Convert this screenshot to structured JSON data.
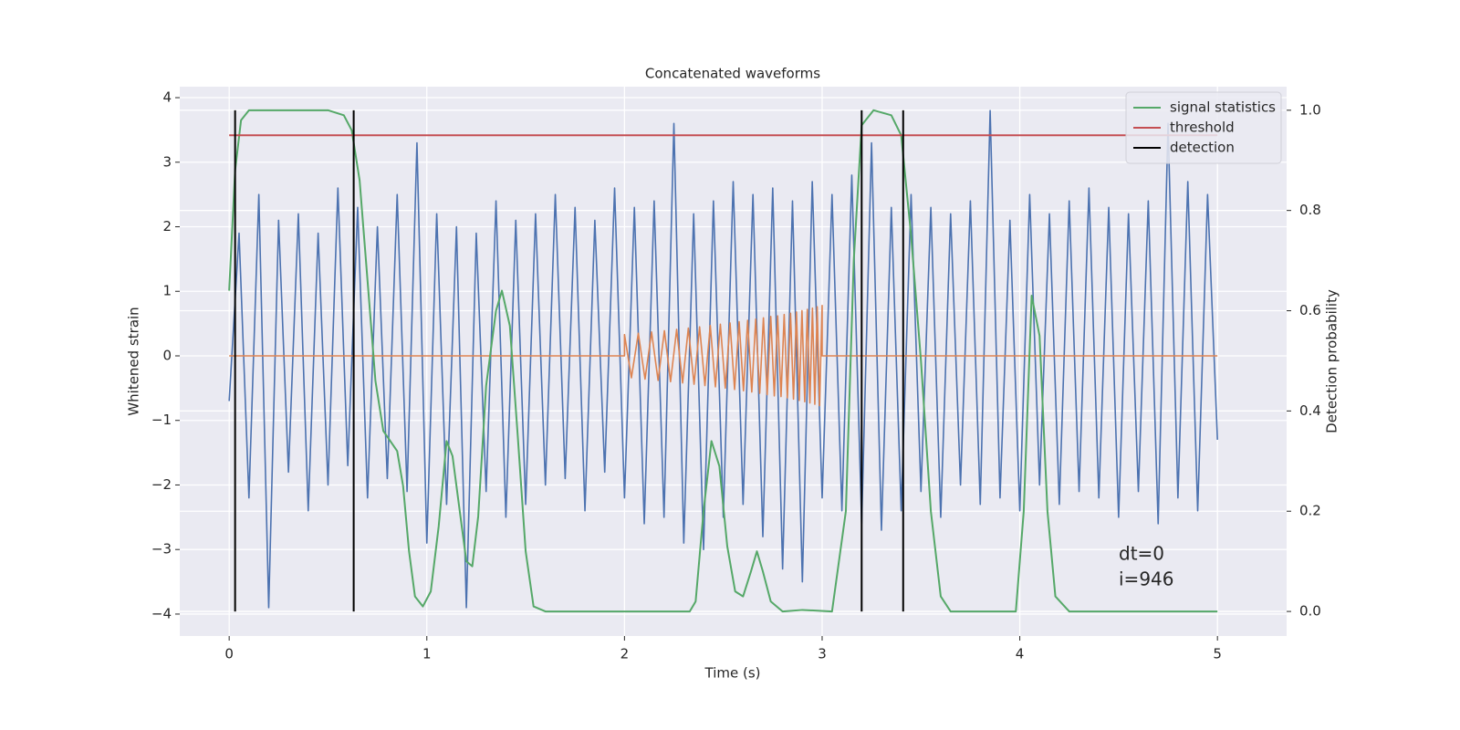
{
  "chart_data": {
    "type": "line",
    "title": "Concatenated waveforms",
    "xlabel": "Time (s)",
    "ylabel": "Whitened strain",
    "y2label": "Detection probability",
    "xlim": [
      -0.25,
      5.35
    ],
    "ylim": [
      -4.34,
      4.17
    ],
    "y2lim": [
      -0.049,
      1.047
    ],
    "xticks": [
      0,
      1,
      2,
      3,
      4,
      5
    ],
    "yticks": [
      -4,
      -3,
      -2,
      -1,
      0,
      1,
      2,
      3,
      4
    ],
    "y2ticks": [
      {
        "value": 0,
        "label": "0.0"
      },
      {
        "value": 0.2,
        "label": "0.2"
      },
      {
        "value": 0.4,
        "label": "0.4"
      },
      {
        "value": 0.6,
        "label": "0.6"
      },
      {
        "value": 0.8,
        "label": "0.8"
      },
      {
        "value": 1,
        "label": "1.0"
      }
    ],
    "grid": true,
    "legend_loc": "upper right",
    "annotations": [
      "dt=0",
      "i=946"
    ],
    "series": [
      {
        "color": "#4c72b0",
        "x": [
          0,
          0.05,
          0.1,
          0.15,
          0.2,
          0.25,
          0.3,
          0.35,
          0.4,
          0.45,
          0.5,
          0.55,
          0.6,
          0.65,
          0.7,
          0.75,
          0.8,
          0.85,
          0.9,
          0.95,
          1,
          1.05,
          1.1,
          1.15,
          1.2,
          1.25,
          1.3,
          1.35,
          1.4,
          1.45,
          1.5,
          1.55,
          1.6,
          1.65,
          1.7,
          1.75,
          1.8,
          1.85,
          1.9,
          1.95,
          2,
          2.05,
          2.1,
          2.15,
          2.2,
          2.25,
          2.3,
          2.35,
          2.4,
          2.45,
          2.5,
          2.55,
          2.6,
          2.65,
          2.7,
          2.75,
          2.8,
          2.85,
          2.9,
          2.95,
          3,
          3.05,
          3.1,
          3.15,
          3.2,
          3.25,
          3.3,
          3.35,
          3.4,
          3.45,
          3.5,
          3.55,
          3.6,
          3.65,
          3.7,
          3.75,
          3.8,
          3.85,
          3.9,
          3.95,
          4,
          4.05,
          4.1,
          4.15,
          4.2,
          4.25,
          4.3,
          4.35,
          4.4,
          4.45,
          4.5,
          4.55,
          4.6,
          4.65,
          4.7,
          4.75,
          4.8,
          4.85,
          4.9,
          4.95,
          5
        ],
        "values": [
          -0.7,
          1.9,
          -2.2,
          2.5,
          -3.9,
          2.1,
          -1.8,
          2.2,
          -2.4,
          1.9,
          -2.0,
          2.6,
          -1.7,
          2.3,
          -2.2,
          2.0,
          -1.9,
          2.5,
          -2.1,
          3.3,
          -2.9,
          2.2,
          -2.3,
          2.0,
          -3.9,
          1.9,
          -2.1,
          2.4,
          -2.5,
          2.1,
          -2.3,
          2.2,
          -2.0,
          2.5,
          -1.9,
          2.3,
          -2.4,
          2.1,
          -1.8,
          2.6,
          -2.2,
          2.3,
          -2.6,
          2.4,
          -2.5,
          3.6,
          -2.9,
          2.2,
          -3.0,
          2.4,
          -2.5,
          2.7,
          -2.3,
          2.5,
          -2.8,
          2.6,
          -3.3,
          2.4,
          -3.5,
          2.7,
          -2.2,
          2.5,
          -2.4,
          2.8,
          -2.6,
          3.3,
          -2.7,
          2.3,
          -2.4,
          2.5,
          -2.1,
          2.3,
          -2.5,
          2.2,
          -2.0,
          2.4,
          -2.3,
          3.8,
          -2.2,
          2.1,
          -2.4,
          2.5,
          -2.0,
          2.2,
          -2.3,
          2.4,
          -2.1,
          2.6,
          -2.2,
          2.3,
          -2.5,
          2.2,
          -2.1,
          2.4,
          -2.6,
          3.6,
          -2.2,
          2.7,
          -2.4,
          2.5,
          -1.3
        ]
      },
      {
        "color": "#dd8452",
        "x": [
          0,
          2,
          2,
          2.035,
          2.07,
          2.104,
          2.137,
          2.17,
          2.202,
          2.233,
          2.264,
          2.294,
          2.323,
          2.352,
          2.38,
          2.407,
          2.434,
          2.46,
          2.485,
          2.51,
          2.534,
          2.557,
          2.58,
          2.602,
          2.623,
          2.644,
          2.664,
          2.684,
          2.703,
          2.722,
          2.74,
          2.758,
          2.775,
          2.792,
          2.808,
          2.824,
          2.84,
          2.855,
          2.87,
          2.884,
          2.898,
          2.912,
          2.925,
          2.938,
          2.951,
          2.963,
          2.975,
          2.987,
          3,
          3,
          5
        ],
        "values": [
          0,
          0,
          0.33,
          -0.34,
          0.35,
          -0.36,
          0.37,
          -0.38,
          0.39,
          -0.4,
          0.41,
          -0.42,
          0.43,
          -0.44,
          0.45,
          -0.46,
          0.47,
          -0.48,
          0.49,
          -0.5,
          0.51,
          -0.52,
          0.53,
          -0.54,
          0.55,
          -0.56,
          0.57,
          -0.58,
          0.59,
          -0.6,
          0.61,
          -0.62,
          0.62,
          -0.63,
          0.64,
          -0.65,
          0.66,
          -0.67,
          0.68,
          -0.69,
          0.7,
          -0.71,
          0.72,
          -0.73,
          0.74,
          -0.75,
          0.76,
          -0.77,
          0.78,
          0,
          0
        ]
      },
      {
        "name": "signal statistics",
        "color": "#55a868",
        "axis": "y2",
        "x": [
          0,
          0.03,
          0.06,
          0.1,
          0.5,
          0.58,
          0.62,
          0.66,
          0.7,
          0.74,
          0.78,
          0.85,
          0.88,
          0.91,
          0.94,
          0.98,
          1.02,
          1.06,
          1.1,
          1.13,
          1.17,
          1.2,
          1.23,
          1.26,
          1.3,
          1.35,
          1.38,
          1.42,
          1.46,
          1.5,
          1.54,
          1.6,
          2.33,
          2.36,
          2.4,
          2.44,
          2.48,
          2.52,
          2.56,
          2.6,
          2.64,
          2.67,
          2.7,
          2.74,
          2.8,
          2.9,
          3.05,
          3.12,
          3.16,
          3.2,
          3.26,
          3.35,
          3.4,
          3.45,
          3.5,
          3.55,
          3.6,
          3.65,
          3.98,
          4.02,
          4.06,
          4.1,
          4.14,
          4.18,
          4.25,
          5
        ],
        "values": [
          0.64,
          0.88,
          0.98,
          1,
          1,
          0.99,
          0.96,
          0.86,
          0.66,
          0.46,
          0.36,
          0.32,
          0.25,
          0.12,
          0.03,
          0.01,
          0.04,
          0.17,
          0.34,
          0.31,
          0.19,
          0.1,
          0.09,
          0.19,
          0.45,
          0.6,
          0.64,
          0.57,
          0.35,
          0.12,
          0.01,
          0,
          0,
          0.02,
          0.2,
          0.34,
          0.29,
          0.13,
          0.04,
          0.03,
          0.08,
          0.12,
          0.08,
          0.02,
          0,
          0.003,
          0,
          0.2,
          0.7,
          0.97,
          1,
          0.99,
          0.95,
          0.75,
          0.5,
          0.2,
          0.03,
          0,
          0,
          0.2,
          0.63,
          0.55,
          0.2,
          0.03,
          0,
          0
        ]
      },
      {
        "name": "threshold",
        "color": "#c44e52",
        "axis": "y2",
        "x": [
          0,
          5
        ],
        "values": [
          0.95,
          0.95
        ]
      },
      {
        "name": "detection",
        "color": "#000000",
        "axis": "y2",
        "x": [
          0.03,
          0.03,
          0.03,
          0.63,
          0.63,
          0.63,
          3.2,
          3.2,
          3.2,
          3.41,
          3.41
        ],
        "values": [
          0,
          1,
          null,
          0,
          1,
          null,
          0,
          1,
          null,
          0,
          1
        ]
      }
    ]
  }
}
